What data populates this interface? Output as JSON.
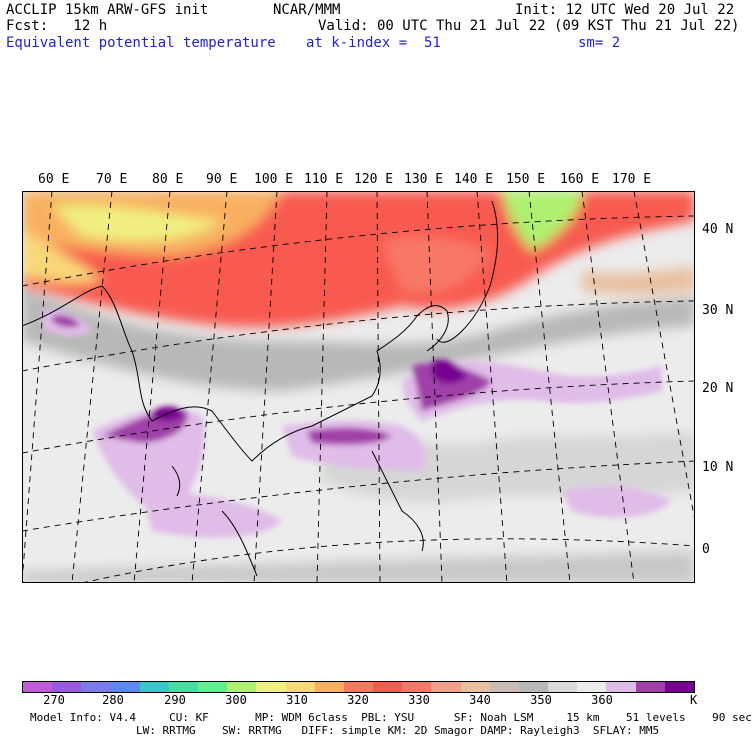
{
  "header": {
    "line1_left": "ACCLIP 15km ARW-GFS init",
    "line1_mid": "NCAR/MMM",
    "line1_right": "Init: 12 UTC Wed 20 Jul 22",
    "line2_left": "Fcst:   12 h",
    "line2_right": "Valid: 00 UTC Thu 21 Jul 22 (09 KST Thu 21 Jul 22)",
    "line3_field": "Equivalent potential temperature",
    "line3_level": "at k-index =  51",
    "line3_smooth": "sm= 2"
  },
  "map": {
    "lon_labels": [
      "60 E",
      "70 E",
      "80 E",
      "90 E",
      "100 E",
      "110 E",
      "120 E",
      "130 E",
      "140 E",
      "150 E",
      "160 E",
      "170 E"
    ],
    "lat_labels": [
      "40 N",
      "30 N",
      "20 N",
      "10 N",
      "0"
    ]
  },
  "colorbar": {
    "colors": [
      "#c05ad8",
      "#9b59e0",
      "#7a7ae8",
      "#5a8af0",
      "#35c8c8",
      "#40e0a0",
      "#60f090",
      "#b0f070",
      "#f0f080",
      "#f8d878",
      "#f8b060",
      "#f87860",
      "#f85a50",
      "#f87868",
      "#f0a088",
      "#e8c0a0",
      "#c8bcb4",
      "#b8b8b8",
      "#d8d8d8",
      "#ececec",
      "#e0bce8",
      "#a040a8",
      "#780090"
    ],
    "ticks": [
      "270",
      "280",
      "290",
      "300",
      "310",
      "320",
      "330",
      "340",
      "350",
      "360"
    ],
    "unit": "K"
  },
  "footer": {
    "line1": "Model Info: V4.4     CU: KF       MP: WDM 6class  PBL: YSU      SF: Noah LSM     15 km    51 levels    90 sec",
    "line2": "                LW: RRTMG    SW: RRTMG   DIFF: simple KM: 2D Smagor DAMP: Rayleigh3  SFLAY: MM5"
  }
}
